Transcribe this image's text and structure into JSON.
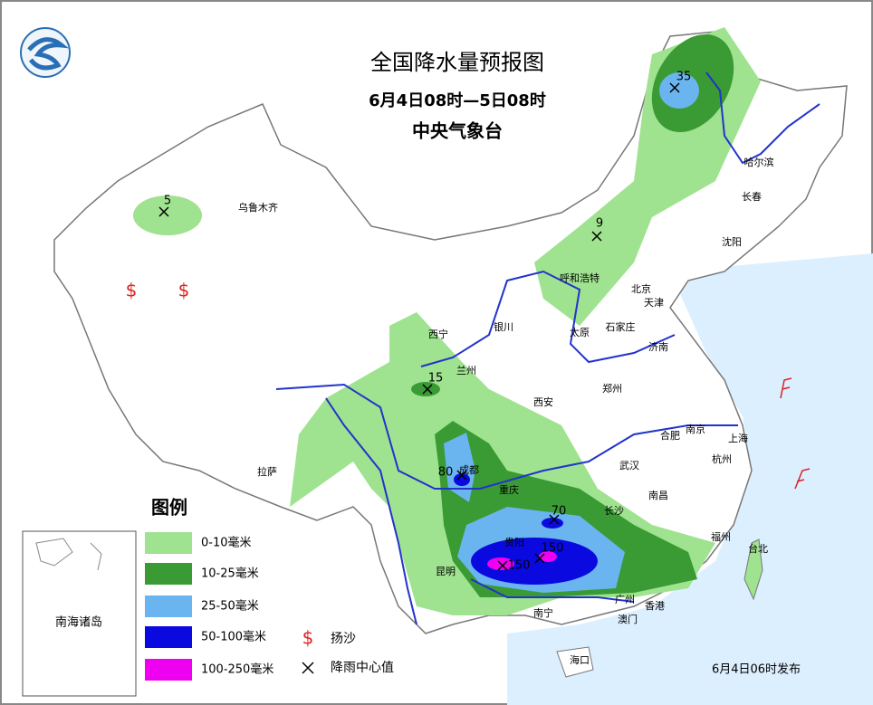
{
  "header": {
    "title": "全国降水量预报图",
    "period": "6月4日08时—5日08时",
    "issuer": "中央气象台"
  },
  "cities": [
    "乌鲁木齐",
    "哈尔滨",
    "长春",
    "沈阳",
    "呼和浩特",
    "北京",
    "天津",
    "银川",
    "太原",
    "石家庄",
    "济南",
    "西宁",
    "兰州",
    "西安",
    "郑州",
    "合肥",
    "南京",
    "上海",
    "武汉",
    "杭州",
    "成都",
    "重庆",
    "长沙",
    "南昌",
    "拉萨",
    "贵阳",
    "昆明",
    "福州",
    "台北",
    "南宁",
    "广州",
    "香港",
    "澳门",
    "海口"
  ],
  "rain_centers": [
    35,
    5,
    9,
    15,
    80,
    70,
    150,
    150
  ],
  "symbols": {
    "sand": "$"
  },
  "legend": {
    "title": "图例",
    "items": [
      {
        "label": "0-10毫米",
        "color": "#9fe28f"
      },
      {
        "label": "10-25毫米",
        "color": "#3a9a33"
      },
      {
        "label": "25-50毫米",
        "color": "#6ab4f0"
      },
      {
        "label": "50-100毫米",
        "color": "#0a0ae0"
      },
      {
        "label": "100-250毫米",
        "color": "#f000f0"
      }
    ],
    "sand": "扬沙",
    "center": "降雨中心值"
  },
  "inset": {
    "label": "南海诸岛"
  },
  "footer": "6月4日06时发布"
}
